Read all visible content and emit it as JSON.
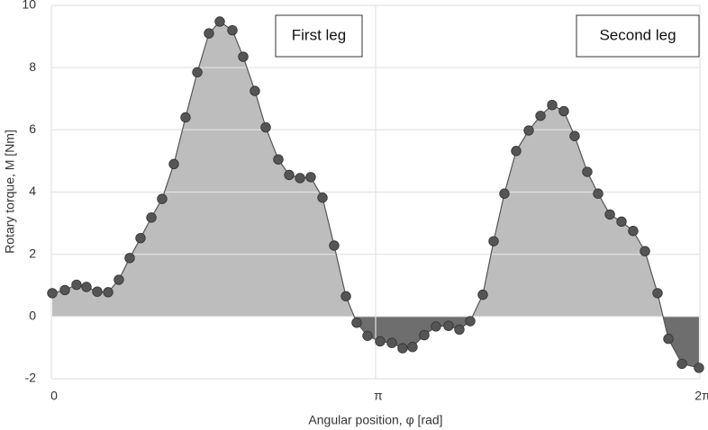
{
  "chart_data": {
    "type": "area",
    "x_label": "Angular position, φ [rad]",
    "y_label": "Rotary torque, M [Nm]",
    "annotations": [
      "First leg",
      "Second leg"
    ],
    "x": [
      0.009,
      0.131,
      0.244,
      0.34,
      0.445,
      0.55,
      0.654,
      0.759,
      0.864,
      0.969,
      1.073,
      1.187,
      1.3,
      1.414,
      1.527,
      1.632,
      1.754,
      1.859,
      1.972,
      2.077,
      2.199,
      2.304,
      2.409,
      2.513,
      2.627,
      2.74,
      2.854,
      2.958,
      3.063,
      3.185,
      3.299,
      3.403,
      3.499,
      3.613,
      3.726,
      3.848,
      3.953,
      4.058,
      4.18,
      4.285,
      4.389,
      4.503,
      4.625,
      4.739,
      4.852,
      4.965,
      5.07,
      5.192,
      5.297,
      5.411,
      5.524,
      5.637,
      5.751,
      5.873,
      5.978,
      6.109,
      6.274
    ],
    "values": [
      0.75,
      0.85,
      1.02,
      0.95,
      0.8,
      0.78,
      1.18,
      1.88,
      2.52,
      3.18,
      3.78,
      4.9,
      6.4,
      7.85,
      9.1,
      9.48,
      9.2,
      8.35,
      7.25,
      6.08,
      5.05,
      4.55,
      4.45,
      4.48,
      3.82,
      2.28,
      0.65,
      -0.2,
      -0.62,
      -0.8,
      -0.85,
      -1.02,
      -0.98,
      -0.6,
      -0.32,
      -0.3,
      -0.42,
      -0.15,
      0.7,
      2.42,
      3.95,
      5.32,
      5.98,
      6.45,
      6.8,
      6.6,
      5.8,
      4.65,
      3.95,
      3.28,
      3.05,
      2.75,
      2.1,
      0.75,
      -0.72,
      -1.52,
      -1.65
    ],
    "color": "#bdbdbd",
    "negative_color": "#6e6e6e",
    "marker_color": "#555555",
    "xlim": [
      0,
      6.2832
    ],
    "xticks": [
      0,
      {
        "value": 3.1416,
        "label": "π"
      },
      {
        "value": 6.2832,
        "label": "2π"
      }
    ],
    "ylim": [
      -2,
      10
    ],
    "yticks": [
      -2,
      0,
      2,
      4,
      6,
      8,
      10
    ],
    "grid": true
  }
}
